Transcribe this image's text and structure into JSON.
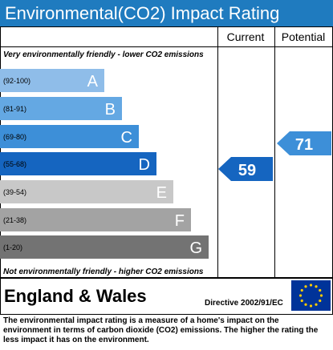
{
  "header": {
    "title": "Environmental(CO2) Impact Rating",
    "columns": [
      "Current",
      "Potential"
    ]
  },
  "top_note": "Very environmentally friendly - lower CO2 emissions",
  "bands": [
    {
      "range": "(92-100)",
      "letter": "A"
    },
    {
      "range": "(81-91)",
      "letter": "B"
    },
    {
      "range": "(69-80)",
      "letter": "C"
    },
    {
      "range": "(55-68)",
      "letter": "D"
    },
    {
      "range": "(39-54)",
      "letter": "E"
    },
    {
      "range": "(21-38)",
      "letter": "F"
    },
    {
      "range": "(1-20)",
      "letter": "G"
    }
  ],
  "bottom_note": "Not environmentally friendly - higher CO2 emissions",
  "current": {
    "value": 59
  },
  "potential": {
    "value": 71
  },
  "footer": {
    "region": "England & Wales",
    "directive": "Directive 2002/91/EC",
    "description": "The environmental impact rating is a measure of a home's impact on the environment in terms of carbon dioxide (CO2) emissions. The higher the rating the less impact it has on the environment."
  }
}
